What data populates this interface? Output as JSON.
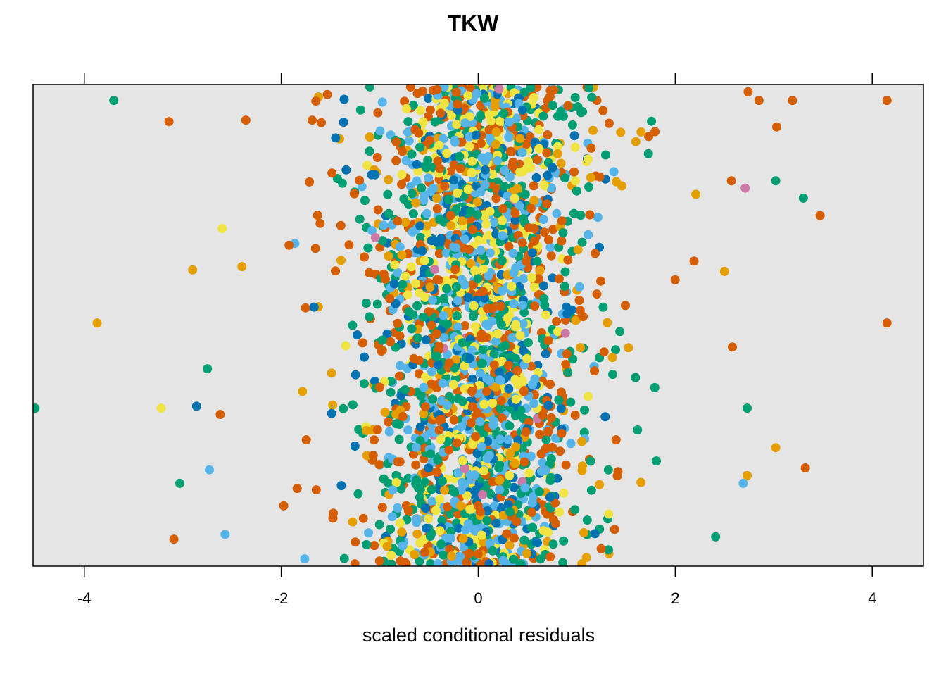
{
  "chart_data": {
    "type": "scatter",
    "title": "TKW",
    "xlabel": "scaled conditional residuals",
    "ylabel": "",
    "xlim": [
      -4.52,
      4.52
    ],
    "ylim": [
      0,
      1
    ],
    "x_ticks": [
      -4,
      -2,
      0,
      2,
      4
    ],
    "x_tick_labels": [
      "-4",
      "-2",
      "0",
      "2",
      "4"
    ],
    "grid": false,
    "panel_background": "#e5e5e5",
    "y_axis": "jittered strip, no labels",
    "point_colors": [
      "#D55E00",
      "#009E73",
      "#56B4E9",
      "#F0E442",
      "#0072B2",
      "#E69F00",
      "#CC79A7"
    ],
    "point_count_approx": 3000,
    "extreme_points": [
      {
        "x": -3.7,
        "y": 0.967,
        "color": "#009E73"
      },
      {
        "x": -3.14,
        "y": 0.923,
        "color": "#D55E00"
      },
      {
        "x": -3.87,
        "y": 0.505,
        "color": "#E69F00"
      },
      {
        "x": -4.5,
        "y": 0.328,
        "color": "#009E73"
      },
      {
        "x": -3.22,
        "y": 0.328,
        "color": "#F0E442"
      },
      {
        "x": -3.03,
        "y": 0.172,
        "color": "#009E73"
      },
      {
        "x": -3.09,
        "y": 0.056,
        "color": "#D55E00"
      },
      {
        "x": -2.9,
        "y": 0.615,
        "color": "#E69F00"
      },
      {
        "x": -2.86,
        "y": 0.332,
        "color": "#0072B2"
      },
      {
        "x": -2.75,
        "y": 0.41,
        "color": "#009E73"
      },
      {
        "x": -2.73,
        "y": 0.2,
        "color": "#56B4E9"
      },
      {
        "x": -2.62,
        "y": 0.315,
        "color": "#D55E00"
      },
      {
        "x": -2.6,
        "y": 0.701,
        "color": "#F0E442"
      },
      {
        "x": -2.57,
        "y": 0.066,
        "color": "#56B4E9"
      },
      {
        "x": -2.4,
        "y": 0.622,
        "color": "#E69F00"
      },
      {
        "x": -2.36,
        "y": 0.926,
        "color": "#D55E00"
      },
      {
        "x": 4.15,
        "y": 0.967,
        "color": "#D55E00"
      },
      {
        "x": 4.15,
        "y": 0.505,
        "color": "#D55E00"
      },
      {
        "x": 3.47,
        "y": 0.728,
        "color": "#D55E00"
      },
      {
        "x": 3.3,
        "y": 0.764,
        "color": "#009E73"
      },
      {
        "x": 3.32,
        "y": 0.204,
        "color": "#D55E00"
      },
      {
        "x": 3.19,
        "y": 0.967,
        "color": "#D55E00"
      },
      {
        "x": 3.03,
        "y": 0.912,
        "color": "#D55E00"
      },
      {
        "x": 3.02,
        "y": 0.8,
        "color": "#009E73"
      },
      {
        "x": 3.02,
        "y": 0.246,
        "color": "#E69F00"
      },
      {
        "x": 2.85,
        "y": 0.967,
        "color": "#D55E00"
      },
      {
        "x": 2.74,
        "y": 0.985,
        "color": "#D55E00"
      },
      {
        "x": 2.71,
        "y": 0.785,
        "color": "#CC79A7"
      },
      {
        "x": 2.73,
        "y": 0.328,
        "color": "#009E73"
      },
      {
        "x": 2.73,
        "y": 0.188,
        "color": "#E69F00"
      },
      {
        "x": 2.69,
        "y": 0.172,
        "color": "#56B4E9"
      },
      {
        "x": 2.57,
        "y": 0.8,
        "color": "#D55E00"
      },
      {
        "x": 2.58,
        "y": 0.455,
        "color": "#D55E00"
      },
      {
        "x": 2.5,
        "y": 0.612,
        "color": "#E69F00"
      },
      {
        "x": 2.41,
        "y": 0.061,
        "color": "#009E73"
      }
    ],
    "series": [
      {
        "color": "#D55E00",
        "n": 560,
        "sd": 0.68
      },
      {
        "color": "#009E73",
        "n": 540,
        "sd": 0.62
      },
      {
        "color": "#56B4E9",
        "n": 480,
        "sd": 0.45
      },
      {
        "color": "#F0E442",
        "n": 400,
        "sd": 0.42
      },
      {
        "color": "#0072B2",
        "n": 280,
        "sd": 0.55
      },
      {
        "color": "#E69F00",
        "n": 200,
        "sd": 0.7
      },
      {
        "color": "#CC79A7",
        "n": 14,
        "sd": 0.5
      }
    ]
  }
}
